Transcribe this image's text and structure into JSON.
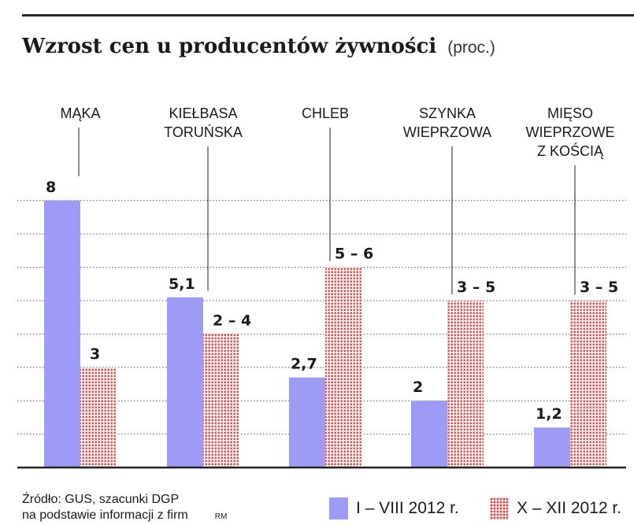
{
  "title": "Wzrost cen u producentów żywności",
  "subtitle": "(proc.)",
  "footer": {
    "source_line1": "Źródło: GUS, szacunki DGP",
    "source_line2": "na podstawie informacji z firm",
    "author": "RM"
  },
  "colors": {
    "series1": "#9d9bf5",
    "series2": "#e53b3b"
  },
  "chart_data": {
    "type": "bar",
    "title": "Wzrost cen u producentów żywności",
    "subtitle": "(proc.)",
    "categories": [
      [
        "MĄKA"
      ],
      [
        "KIEŁBASA",
        "TORUŃSKA"
      ],
      [
        "CHLEB"
      ],
      [
        "SZYNKA",
        "WIEPRZOWA"
      ],
      [
        "MIĘSO",
        "WIEPRZOWE",
        "Z KOŚCIĄ"
      ]
    ],
    "series": [
      {
        "name": "I – VIII 2012 r.",
        "values": [
          8,
          5.1,
          2.7,
          2,
          1.2
        ],
        "labels": [
          "8",
          "5,1",
          "2,7",
          "2",
          "1,2"
        ]
      },
      {
        "name": "X – XII 2012 r.",
        "values": [
          3,
          4,
          6,
          5,
          5
        ],
        "labels": [
          "3",
          "2 – 4",
          "5 – 6",
          "3 – 5",
          "3 – 5"
        ]
      }
    ],
    "ylim": [
      0,
      9
    ],
    "grid": true,
    "legend_position": "bottom-right"
  }
}
